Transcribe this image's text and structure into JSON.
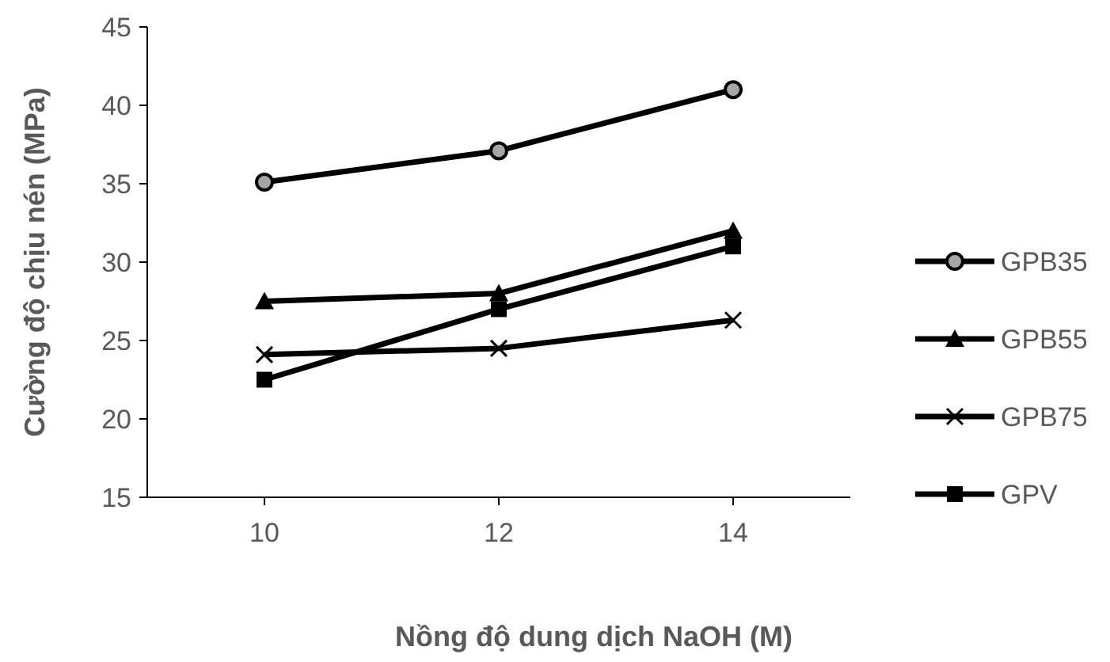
{
  "chart_data": {
    "type": "line",
    "xlabel": "Nồng độ dung dịch NaOH (M)",
    "ylabel": "Cường độ chịu nén (MPa)",
    "x": [
      10,
      12,
      14
    ],
    "xlim": [
      9,
      15
    ],
    "xticks": [
      10,
      12,
      14
    ],
    "ylim": [
      15,
      45
    ],
    "yticks": [
      15,
      20,
      25,
      30,
      35,
      40,
      45
    ],
    "grid": false,
    "legend": "right",
    "line_style": "solid",
    "series": [
      {
        "name": "GPB35",
        "color": "#000000",
        "marker": "circle",
        "values": [
          35.1,
          37.1,
          41
        ]
      },
      {
        "name": "GPB55",
        "color": "#000000",
        "marker": "triangle",
        "values": [
          27.5,
          28,
          32
        ]
      },
      {
        "name": "GPB75",
        "color": "#000000",
        "marker": "cross",
        "values": [
          24.1,
          24.5,
          26.3
        ]
      },
      {
        "name": "GPV",
        "color": "#000000",
        "marker": "square",
        "values": [
          22.5,
          27,
          31
        ]
      }
    ]
  }
}
